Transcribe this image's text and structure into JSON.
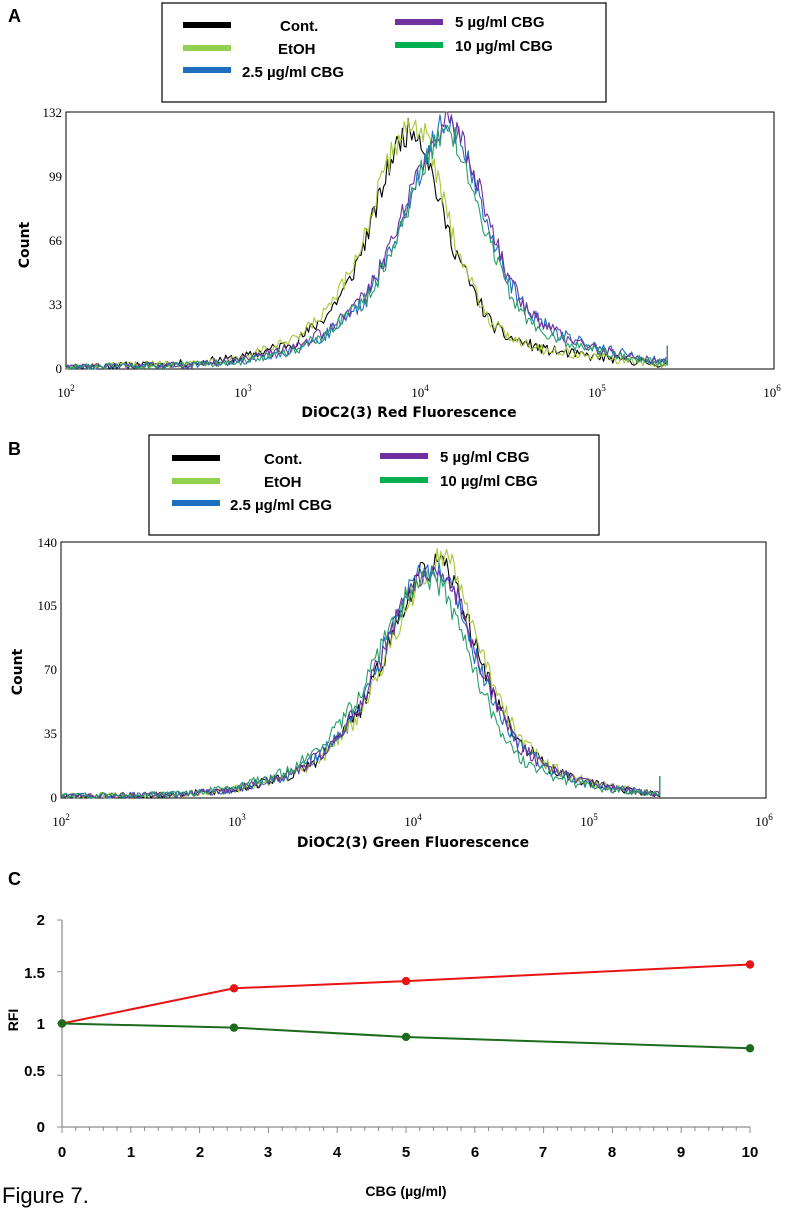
{
  "figure_caption": "Figure 7.",
  "chart_data": [
    {
      "panel": "A",
      "type": "line",
      "title": "",
      "xlabel": "DiOC2(3) Red Fluorescence",
      "ylabel": "Count",
      "x_scale": "log",
      "xlim": [
        100,
        1000000
      ],
      "ylim": [
        0,
        132
      ],
      "yticks": [
        "0",
        "33",
        "66",
        "99",
        "132"
      ],
      "xtick_bases": [
        "10",
        "10",
        "10",
        "10",
        "10"
      ],
      "xtick_exponents": [
        "2",
        "3",
        "4",
        "5",
        "6"
      ],
      "legend": [
        {
          "name": "Cont.",
          "color": "#000000"
        },
        {
          "name": "EtOH",
          "color": "#92d050"
        },
        {
          "name": "2.5 µg/ml CBG",
          "color": "#1f6fc0"
        },
        {
          "name": "5  µg/ml CBG",
          "color": "#7030a0"
        },
        {
          "name": "10 µg/ml CBG",
          "color": "#00b050"
        }
      ],
      "series": [
        {
          "name": "Cont.",
          "color": "#000000",
          "points": [
            [
              100,
              1
            ],
            [
              500,
              3
            ],
            [
              1000,
              6
            ],
            [
              2000,
              14
            ],
            [
              3000,
              28
            ],
            [
              4000,
              45
            ],
            [
              5000,
              68
            ],
            [
              6000,
              90
            ],
            [
              7000,
              110
            ],
            [
              8000,
              120
            ],
            [
              9500,
              124
            ],
            [
              11000,
              110
            ],
            [
              12500,
              90
            ],
            [
              15000,
              66
            ],
            [
              20000,
              40
            ],
            [
              25000,
              24
            ],
            [
              30000,
              17
            ],
            [
              50000,
              10
            ],
            [
              100000,
              6
            ],
            [
              200000,
              3
            ],
            [
              250000,
              2
            ]
          ]
        },
        {
          "name": "EtOH",
          "color": "#a5c93a",
          "points": [
            [
              100,
              1
            ],
            [
              500,
              3
            ],
            [
              1000,
              6
            ],
            [
              2000,
              15
            ],
            [
              3000,
              30
            ],
            [
              4000,
              48
            ],
            [
              5000,
              72
            ],
            [
              6000,
              95
            ],
            [
              7000,
              112
            ],
            [
              8000,
              123
            ],
            [
              9500,
              126
            ],
            [
              11000,
              118
            ],
            [
              12500,
              98
            ],
            [
              15000,
              72
            ],
            [
              20000,
              42
            ],
            [
              25000,
              25
            ],
            [
              30000,
              18
            ],
            [
              50000,
              10
            ],
            [
              100000,
              6
            ],
            [
              200000,
              3
            ],
            [
              250000,
              2
            ]
          ]
        },
        {
          "name": "2.5 µg/ml CBG",
          "color": "#1f6fc0",
          "points": [
            [
              100,
              1
            ],
            [
              500,
              2
            ],
            [
              1000,
              4
            ],
            [
              2000,
              10
            ],
            [
              3000,
              18
            ],
            [
              5000,
              36
            ],
            [
              7000,
              62
            ],
            [
              9000,
              90
            ],
            [
              11000,
              112
            ],
            [
              13000,
              125
            ],
            [
              14500,
              128
            ],
            [
              16000,
              122
            ],
            [
              20000,
              100
            ],
            [
              25000,
              70
            ],
            [
              30000,
              50
            ],
            [
              40000,
              30
            ],
            [
              60000,
              18
            ],
            [
              100000,
              11
            ],
            [
              200000,
              5
            ],
            [
              250000,
              4
            ]
          ]
        },
        {
          "name": "5  µg/ml CBG",
          "color": "#7030a0",
          "points": [
            [
              100,
              1
            ],
            [
              500,
              2
            ],
            [
              1000,
              5
            ],
            [
              2000,
              11
            ],
            [
              3000,
              20
            ],
            [
              5000,
              38
            ],
            [
              7000,
              65
            ],
            [
              9000,
              92
            ],
            [
              11000,
              112
            ],
            [
              13000,
              124
            ],
            [
              14500,
              130
            ],
            [
              16000,
              124
            ],
            [
              20000,
              102
            ],
            [
              25000,
              74
            ],
            [
              30000,
              52
            ],
            [
              40000,
              30
            ],
            [
              60000,
              18
            ],
            [
              100000,
              10
            ],
            [
              200000,
              5
            ],
            [
              250000,
              4
            ]
          ]
        },
        {
          "name": "10 µg/ml CBG",
          "color": "#2a9d6a",
          "points": [
            [
              100,
              1
            ],
            [
              500,
              2
            ],
            [
              1000,
              4
            ],
            [
              2000,
              10
            ],
            [
              3000,
              18
            ],
            [
              5000,
              36
            ],
            [
              7000,
              60
            ],
            [
              9000,
              88
            ],
            [
              11000,
              110
            ],
            [
              13000,
              120
            ],
            [
              14500,
              124
            ],
            [
              16000,
              116
            ],
            [
              20000,
              92
            ],
            [
              25000,
              64
            ],
            [
              30000,
              44
            ],
            [
              40000,
              26
            ],
            [
              60000,
              15
            ],
            [
              100000,
              9
            ],
            [
              200000,
              4
            ],
            [
              250000,
              3
            ]
          ]
        }
      ]
    },
    {
      "panel": "B",
      "type": "line",
      "title": "",
      "xlabel": "DiOC2(3) Green Fluorescence",
      "ylabel": "Count",
      "x_scale": "log",
      "xlim": [
        100,
        1000000
      ],
      "ylim": [
        0,
        140
      ],
      "yticks": [
        "0",
        "35",
        "70",
        "105",
        "140"
      ],
      "xtick_bases": [
        "10",
        "10",
        "10",
        "10",
        "10"
      ],
      "xtick_exponents": [
        "2",
        "3",
        "4",
        "5",
        "6"
      ],
      "legend": [
        {
          "name": "Cont.",
          "color": "#000000"
        },
        {
          "name": "EtOH",
          "color": "#92d050"
        },
        {
          "name": "2.5 µg/ml CBG",
          "color": "#1f6fc0"
        },
        {
          "name": "5  µg/ml CBG",
          "color": "#7030a0"
        },
        {
          "name": "10 µg/ml CBG",
          "color": "#00b050"
        }
      ],
      "series": [
        {
          "name": "Cont.",
          "color": "#000000",
          "points": [
            [
              100,
              1
            ],
            [
              500,
              2
            ],
            [
              1000,
              5
            ],
            [
              2000,
              12
            ],
            [
              3000,
              22
            ],
            [
              5000,
              48
            ],
            [
              7000,
              80
            ],
            [
              9000,
              108
            ],
            [
              11000,
              122
            ],
            [
              13000,
              128
            ],
            [
              15000,
              126
            ],
            [
              18000,
              112
            ],
            [
              22000,
              86
            ],
            [
              30000,
              52
            ],
            [
              40000,
              30
            ],
            [
              60000,
              16
            ],
            [
              100000,
              8
            ],
            [
              200000,
              3
            ],
            [
              250000,
              2
            ]
          ]
        },
        {
          "name": "EtOH",
          "color": "#a5c93a",
          "points": [
            [
              100,
              1
            ],
            [
              500,
              2
            ],
            [
              1000,
              5
            ],
            [
              2000,
              12
            ],
            [
              3000,
              22
            ],
            [
              5000,
              46
            ],
            [
              7000,
              78
            ],
            [
              9000,
              104
            ],
            [
              11000,
              120
            ],
            [
              13000,
              130
            ],
            [
              15000,
              134
            ],
            [
              18000,
              120
            ],
            [
              22000,
              92
            ],
            [
              30000,
              56
            ],
            [
              40000,
              32
            ],
            [
              60000,
              17
            ],
            [
              100000,
              8
            ],
            [
              200000,
              3
            ],
            [
              250000,
              2
            ]
          ]
        },
        {
          "name": "2.5 µg/ml CBG",
          "color": "#1f6fc0",
          "points": [
            [
              100,
              1
            ],
            [
              500,
              2
            ],
            [
              1000,
              5
            ],
            [
              2000,
              13
            ],
            [
              3000,
              24
            ],
            [
              5000,
              50
            ],
            [
              7000,
              84
            ],
            [
              9000,
              110
            ],
            [
              11000,
              122
            ],
            [
              13000,
              125
            ],
            [
              15000,
              122
            ],
            [
              18000,
              106
            ],
            [
              22000,
              80
            ],
            [
              30000,
              48
            ],
            [
              40000,
              28
            ],
            [
              60000,
              15
            ],
            [
              100000,
              7
            ],
            [
              200000,
              3
            ],
            [
              250000,
              2
            ]
          ]
        },
        {
          "name": "5  µg/ml CBG",
          "color": "#7030a0",
          "points": [
            [
              100,
              1
            ],
            [
              500,
              2
            ],
            [
              1000,
              5
            ],
            [
              2000,
              13
            ],
            [
              3000,
              24
            ],
            [
              5000,
              50
            ],
            [
              7000,
              84
            ],
            [
              9000,
              110
            ],
            [
              11000,
              122
            ],
            [
              13000,
              126
            ],
            [
              15000,
              124
            ],
            [
              18000,
              108
            ],
            [
              22000,
              82
            ],
            [
              30000,
              50
            ],
            [
              40000,
              28
            ],
            [
              60000,
              15
            ],
            [
              100000,
              8
            ],
            [
              200000,
              3
            ],
            [
              250000,
              2
            ]
          ]
        },
        {
          "name": "10 µg/ml CBG",
          "color": "#2a9d6a",
          "points": [
            [
              100,
              1
            ],
            [
              500,
              2
            ],
            [
              1000,
              6
            ],
            [
              2000,
              15
            ],
            [
              3000,
              28
            ],
            [
              5000,
              56
            ],
            [
              7000,
              88
            ],
            [
              9000,
              110
            ],
            [
              11000,
              118
            ],
            [
              13000,
              120
            ],
            [
              15000,
              114
            ],
            [
              18000,
              96
            ],
            [
              22000,
              70
            ],
            [
              30000,
              40
            ],
            [
              40000,
              22
            ],
            [
              60000,
              12
            ],
            [
              100000,
              6
            ],
            [
              200000,
              3
            ],
            [
              250000,
              2
            ]
          ]
        }
      ]
    },
    {
      "panel": "C",
      "type": "line",
      "title": "",
      "xlabel": "CBG (µg/ml)",
      "ylabel": "RFI",
      "xlim": [
        0,
        10
      ],
      "ylim": [
        0,
        2
      ],
      "xticks": [
        "0",
        "1",
        "2",
        "3",
        "4",
        "5",
        "6",
        "7",
        "8",
        "9",
        "10"
      ],
      "yticks": [
        "0",
        "0.5",
        "1",
        "1.5",
        "2"
      ],
      "series": [
        {
          "name": "Red",
          "color": "#e81414",
          "x": [
            0,
            2.5,
            5,
            10
          ],
          "values": [
            1.0,
            1.34,
            1.41,
            1.57
          ]
        },
        {
          "name": "Green",
          "color": "#1d6b1d",
          "x": [
            0,
            2.5,
            5,
            10
          ],
          "values": [
            1.0,
            0.96,
            0.87,
            0.76
          ]
        }
      ]
    }
  ]
}
